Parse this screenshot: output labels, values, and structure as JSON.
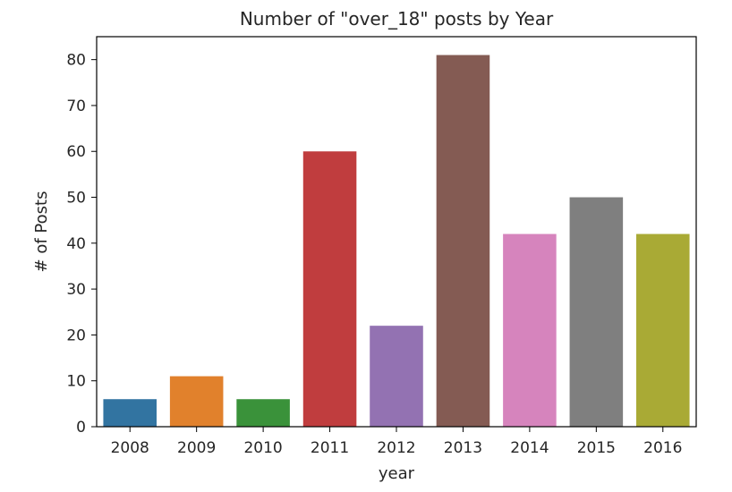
{
  "chart_data": {
    "type": "bar",
    "title": "Number of \"over_18\" posts by Year",
    "xlabel": "year",
    "ylabel": "# of Posts",
    "categories": [
      "2008",
      "2009",
      "2010",
      "2011",
      "2012",
      "2013",
      "2014",
      "2015",
      "2016"
    ],
    "values": [
      6,
      11,
      6,
      60,
      22,
      81,
      42,
      50,
      42
    ],
    "ylim": [
      0,
      85
    ],
    "yticks": [
      0,
      10,
      20,
      30,
      40,
      50,
      60,
      70,
      80
    ],
    "grid": false,
    "colors": [
      "#3274a1",
      "#e1812c",
      "#3a923a",
      "#c03d3e",
      "#9372b2",
      "#845b53",
      "#d684bd",
      "#7f7f7f",
      "#a9aa35"
    ]
  }
}
